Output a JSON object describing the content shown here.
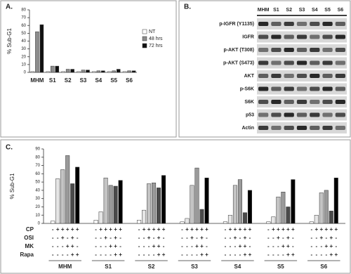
{
  "chart_data": [
    {
      "type": "bar",
      "panel": "A.",
      "y_label": "% Sub-G1",
      "categories": [
        "MHM",
        "S1",
        "S2",
        "S3",
        "S4",
        "S5",
        "S6"
      ],
      "series": [
        {
          "name": "NT",
          "color": "#ffffff",
          "values": [
            1,
            1,
            1,
            1,
            1,
            1,
            1
          ]
        },
        {
          "name": "48 hrs",
          "color": "#8c8c8c",
          "values": [
            52,
            8,
            4,
            3,
            2,
            2,
            2
          ]
        },
        {
          "name": "72 hrs",
          "color": "#111111",
          "values": [
            61,
            8,
            4,
            3,
            2,
            4,
            2
          ]
        }
      ],
      "ylim": [
        0,
        80
      ],
      "yticks": [
        0,
        10,
        20,
        30,
        40,
        50,
        60,
        70,
        80
      ],
      "legend": "right"
    },
    {
      "type": "bar",
      "panel": "C.",
      "y_label": "% Sub-G1",
      "categories": [
        "MHM",
        "S1",
        "S2",
        "S3",
        "S4",
        "S5",
        "S6"
      ],
      "series": [
        {
          "color": "#ffffff",
          "values": [
            3,
            4,
            4,
            2,
            2,
            2,
            2
          ]
        },
        {
          "color": "#e6e6e6",
          "values": [
            54,
            14,
            16,
            6,
            10,
            8,
            10
          ]
        },
        {
          "color": "#c4c4c4",
          "values": [
            65,
            55,
            48,
            46,
            46,
            32,
            37
          ]
        },
        {
          "color": "#9a9a9a",
          "values": [
            82,
            46,
            49,
            67,
            53,
            38,
            40
          ]
        },
        {
          "color": "#4a4a4a",
          "values": [
            48,
            45,
            43,
            17,
            13,
            20,
            15
          ]
        },
        {
          "color": "#000000",
          "values": [
            68,
            52,
            58,
            55,
            40,
            53,
            55
          ]
        }
      ],
      "ylim": [
        0,
        90
      ],
      "yticks": [
        0,
        10,
        20,
        30,
        40,
        50,
        60,
        70,
        80,
        90
      ],
      "treatments": [
        {
          "label": "CP",
          "signs": [
            "-",
            "+",
            "+",
            "+",
            "+",
            "+"
          ]
        },
        {
          "label": "OSI",
          "signs": [
            "-",
            "-",
            "+",
            "-",
            "+",
            "-"
          ]
        },
        {
          "label": "MK",
          "signs": [
            "-",
            "-",
            "-",
            "+",
            "+",
            "-"
          ]
        },
        {
          "label": "Rapa",
          "signs": [
            "-",
            "-",
            "-",
            "-",
            "+",
            "+"
          ]
        }
      ]
    }
  ],
  "blot": {
    "panel": "B.",
    "lanes": [
      "MHM",
      "S1",
      "S2",
      "S3",
      "S4",
      "S5",
      "S6"
    ],
    "rows": [
      "p-IGFR (Y1135)",
      "IGFR",
      "p-AKT (T308)",
      "p-AKT (S473)",
      "AKT",
      "p-S6K",
      "S6K",
      "p53",
      "Actin"
    ]
  }
}
